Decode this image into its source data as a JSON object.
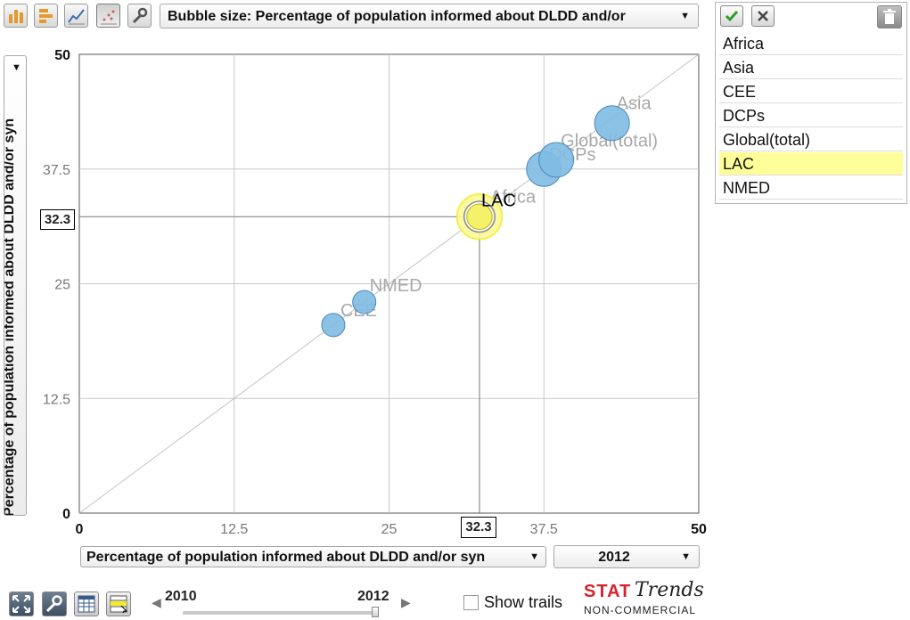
{
  "toolbar": {
    "buttons": [
      {
        "name": "bar-chart-button",
        "icon": "bar-chart-icon"
      },
      {
        "name": "horizontal-bar-button",
        "icon": "horizontal-bar-icon"
      },
      {
        "name": "line-chart-button",
        "icon": "line-chart-icon"
      },
      {
        "name": "bubble-chart-button",
        "icon": "scatter-icon",
        "active": true
      },
      {
        "name": "settings-button",
        "icon": "wrench-icon"
      }
    ],
    "bubble_size_label": "Bubble size: Percentage of population informed about DLDD and/or"
  },
  "legend": {
    "items": [
      "Africa",
      "Asia",
      "CEE",
      "DCPs",
      "Global(total)",
      "LAC",
      "NMED"
    ],
    "selected": "LAC"
  },
  "chart_data": {
    "type": "scatter",
    "title": "",
    "xlabel": "Percentage of population informed about DLDD and/or syn",
    "ylabel": "Percentage of population informed about DLDD and/or syn",
    "xlim": [
      0,
      50
    ],
    "ylim": [
      0,
      50
    ],
    "xticks": [
      "0",
      "12.5",
      "25",
      "37.5",
      "50"
    ],
    "yticks": [
      "0",
      "12.5",
      "25",
      "37.5",
      "50"
    ],
    "points": [
      {
        "name": "CEE",
        "x": 20.5,
        "y": 20.5,
        "size": 1.0
      },
      {
        "name": "NMED",
        "x": 23.0,
        "y": 23.0,
        "size": 1.0
      },
      {
        "name": "LAC",
        "x": 32.3,
        "y": 32.3,
        "size": 1.25,
        "selected": true
      },
      {
        "name": "Africa",
        "x": 32.3,
        "y": 32.3,
        "size": 1.25
      },
      {
        "name": "DCPs",
        "x": 37.5,
        "y": 37.5,
        "size": 1.5
      },
      {
        "name": "Global(total)",
        "x": 38.5,
        "y": 38.5,
        "size": 1.5
      },
      {
        "name": "Asia",
        "x": 43.0,
        "y": 42.5,
        "size": 1.5
      }
    ],
    "selected_x_label": "32.3",
    "selected_y_label": "32.3",
    "diagonal": true,
    "grid": true,
    "colors": {
      "bubble": "#7fbbe3",
      "bubble_stroke": "#4a88b8",
      "selected": "#f5f26a",
      "label": "#a8a8a8",
      "selected_label": "#000000"
    }
  },
  "x_axis_selector": "Percentage of population informed about DLDD and/or syn",
  "y_axis_selector": "Percentage of population informed about DLDD and/or syn",
  "year_selector": "2012",
  "timeline": {
    "start_label": "2010",
    "end_label": "2012",
    "value": 1.0
  },
  "show_trails_label": "Show trails",
  "branding": {
    "stat": "STAT",
    "trends": "Trends",
    "edition": "NON-COMMERCIAL"
  }
}
